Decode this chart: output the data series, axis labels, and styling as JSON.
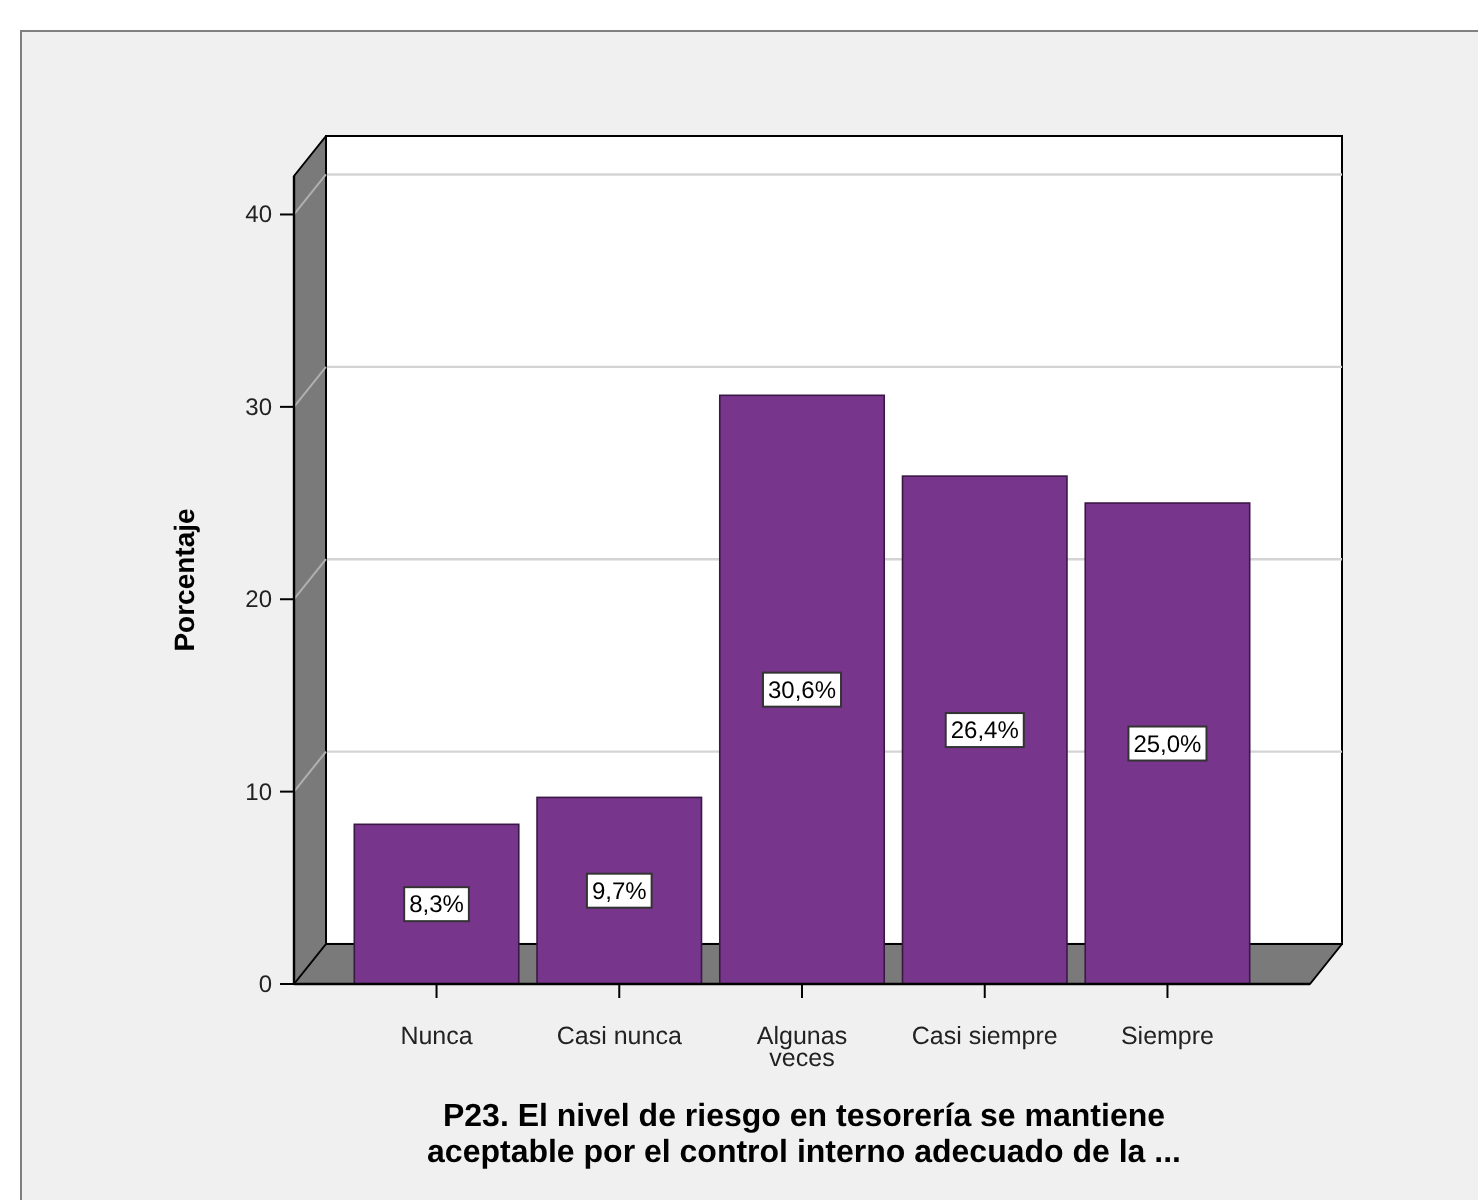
{
  "chart_data": {
    "type": "bar",
    "categories": [
      "Nunca",
      "Casi nunca",
      "Algunas veces",
      "Casi siempre",
      "Siempre"
    ],
    "values": [
      8.3,
      9.7,
      30.6,
      26.4,
      25.0
    ],
    "color": "#77368b",
    "value_labels": [
      "8,3%",
      "9,7%",
      "30,6%",
      "26,4%",
      "25,0%"
    ],
    "xlabel": "P23. El nivel de riesgo en tesorería se mantiene aceptable por el control interno adecuado de la ...",
    "ylabel": "Porcentaje",
    "ylim": [
      0,
      42
    ],
    "yticks": [
      0,
      10,
      20,
      30,
      40
    ],
    "grid": "y"
  }
}
